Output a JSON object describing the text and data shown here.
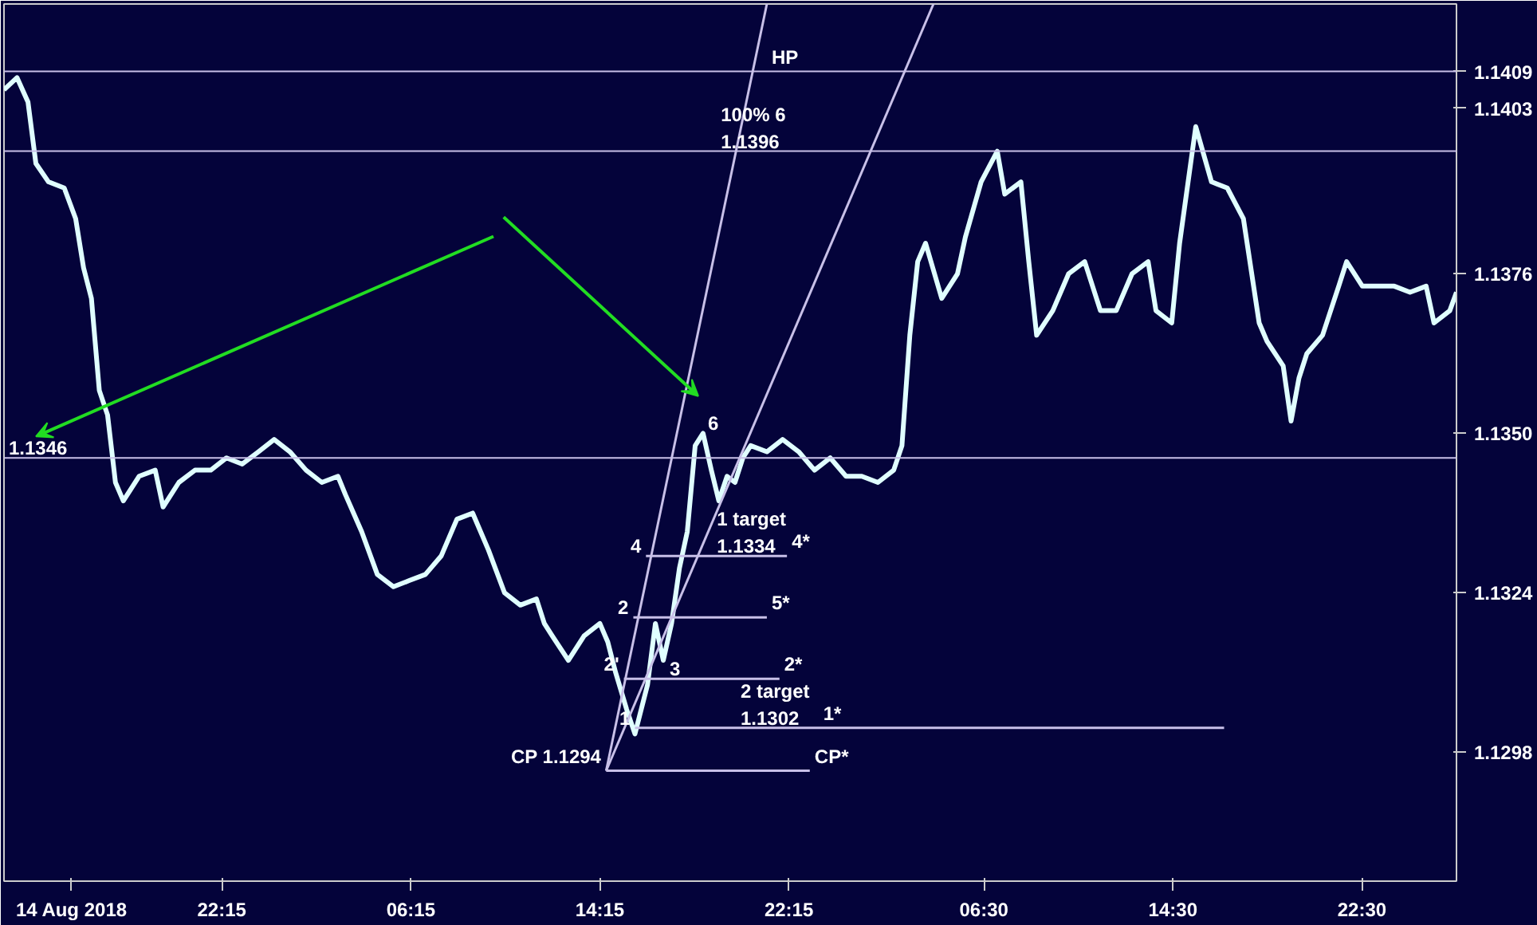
{
  "chart_data": {
    "type": "line",
    "xlim": [
      "2018-08-14T13:02",
      "2018-08-17T02:30"
    ],
    "ylim": [
      1.1277,
      1.142
    ],
    "xticks": [
      {
        "value": "2018-08-14T15:54",
        "label": "14 Aug 2018"
      },
      {
        "value": "2018-08-14T22:15",
        "label": "22:15"
      },
      {
        "value": "2018-08-15T06:15",
        "label": "06:15"
      },
      {
        "value": "2018-08-15T14:15",
        "label": "14:15"
      },
      {
        "value": "2018-08-15T22:15",
        "label": "22:15"
      },
      {
        "value": "2018-08-16T06:30",
        "label": "06:30"
      },
      {
        "value": "2018-08-16T14:30",
        "label": "14:30"
      },
      {
        "value": "2018-08-16T22:30",
        "label": "22:30"
      }
    ],
    "yticks": [
      {
        "value": 1.1298,
        "label": "1.1298"
      },
      {
        "value": 1.1324,
        "label": "1.1324"
      },
      {
        "value": 1.135,
        "label": "1.1350"
      },
      {
        "value": 1.1376,
        "label": "1.1376"
      },
      {
        "value": 1.1403,
        "label": "1.1403"
      },
      {
        "value": 1.1409,
        "label": "1.1409"
      }
    ],
    "grid": false,
    "series": [
      {
        "color": "#e0ffff",
        "x": [
          "2018-08-14T13:02",
          "2018-08-14T13:35",
          "2018-08-14T14:03",
          "2018-08-14T14:23",
          "2018-08-14T14:55",
          "2018-08-14T15:35",
          "2018-08-14T16:04",
          "2018-08-14T16:24",
          "2018-08-14T16:44",
          "2018-08-14T17:04",
          "2018-08-14T17:25",
          "2018-08-14T17:45",
          "2018-08-14T18:05",
          "2018-08-14T18:45",
          "2018-08-14T19:26",
          "2018-08-14T19:46",
          "2018-08-14T20:26",
          "2018-08-14T21:07",
          "2018-08-14T21:47",
          "2018-08-14T22:27",
          "2018-08-14T23:07",
          "2018-08-14T23:48",
          "2018-08-15T00:28",
          "2018-08-15T01:08",
          "2018-08-15T01:49",
          "2018-08-15T02:29",
          "2018-08-15T03:10",
          "2018-08-15T03:29",
          "2018-08-15T04:10",
          "2018-08-15T04:50",
          "2018-08-15T05:31",
          "2018-08-15T06:11",
          "2018-08-15T06:52",
          "2018-08-15T07:32",
          "2018-08-15T08:12",
          "2018-08-15T08:52",
          "2018-08-15T09:32",
          "2018-08-15T10:13",
          "2018-08-15T10:53",
          "2018-08-15T11:34",
          "2018-08-15T11:54",
          "2018-08-15T12:14",
          "2018-08-15T12:55",
          "2018-08-15T13:35",
          "2018-08-15T14:15",
          "2018-08-15T14:35",
          "2018-08-15T14:55",
          "2018-08-15T15:23",
          "2018-08-15T15:44",
          "2018-08-15T16:16",
          "2018-08-15T16:36",
          "2018-08-15T16:56",
          "2018-08-15T17:17",
          "2018-08-15T17:37",
          "2018-08-15T17:57",
          "2018-08-15T18:17",
          "2018-08-15T18:37",
          "2018-08-15T18:58",
          "2018-08-15T19:17",
          "2018-08-15T19:38",
          "2018-08-15T19:58",
          "2018-08-15T20:18",
          "2018-08-15T20:38",
          "2018-08-15T21:19",
          "2018-08-15T21:59",
          "2018-08-15T22:40",
          "2018-08-15T23:20",
          "2018-08-16T00:00",
          "2018-08-16T00:40",
          "2018-08-16T01:20",
          "2018-08-16T02:01",
          "2018-08-16T02:41",
          "2018-08-16T03:02",
          "2018-08-16T03:22",
          "2018-08-16T03:42",
          "2018-08-16T04:02",
          "2018-08-16T04:43",
          "2018-08-16T05:23",
          "2018-08-16T05:43",
          "2018-08-16T06:23",
          "2018-08-16T07:04",
          "2018-08-16T07:23",
          "2018-08-16T08:04",
          "2018-08-16T08:24",
          "2018-08-16T08:44",
          "2018-08-16T09:25",
          "2018-08-16T10:05",
          "2018-08-16T10:46",
          "2018-08-16T11:26",
          "2018-08-16T12:06",
          "2018-08-16T12:46",
          "2018-08-16T13:27",
          "2018-08-16T13:47",
          "2018-08-16T14:27",
          "2018-08-16T14:47",
          "2018-08-16T15:28",
          "2018-08-16T16:08",
          "2018-08-16T16:48",
          "2018-08-16T17:29",
          "2018-08-16T18:09",
          "2018-08-16T18:29",
          "2018-08-16T19:10",
          "2018-08-16T19:30",
          "2018-08-16T19:50",
          "2018-08-16T20:10",
          "2018-08-16T20:50",
          "2018-08-16T21:31",
          "2018-08-16T21:51",
          "2018-08-16T22:31",
          "2018-08-16T23:11",
          "2018-08-16T23:52",
          "2018-08-17T00:32",
          "2018-08-17T01:13",
          "2018-08-17T01:33",
          "2018-08-17T02:13",
          "2018-08-17T02:30"
        ],
        "values": [
          1.1406,
          1.1408,
          1.1404,
          1.1394,
          1.1391,
          1.139,
          1.1385,
          1.1377,
          1.1372,
          1.1357,
          1.1353,
          1.1342,
          1.1339,
          1.1343,
          1.1344,
          1.1338,
          1.1342,
          1.1344,
          1.1344,
          1.1346,
          1.1345,
          1.1347,
          1.1349,
          1.1347,
          1.1344,
          1.1342,
          1.1343,
          1.134,
          1.1334,
          1.1327,
          1.1325,
          1.1326,
          1.1327,
          1.133,
          1.1336,
          1.1337,
          1.1331,
          1.1324,
          1.1322,
          1.1323,
          1.1319,
          1.1317,
          1.1313,
          1.1317,
          1.1319,
          1.1316,
          1.1311,
          1.1305,
          1.1301,
          1.1309,
          1.1319,
          1.1313,
          1.1319,
          1.1328,
          1.1334,
          1.1348,
          1.135,
          1.1344,
          1.1339,
          1.1343,
          1.1342,
          1.1346,
          1.1348,
          1.1347,
          1.1349,
          1.1347,
          1.1344,
          1.1346,
          1.1343,
          1.1343,
          1.1342,
          1.1344,
          1.1348,
          1.1366,
          1.1378,
          1.1381,
          1.1372,
          1.1376,
          1.1382,
          1.1391,
          1.1396,
          1.1389,
          1.1391,
          1.1378,
          1.1366,
          1.137,
          1.1376,
          1.1378,
          1.137,
          1.137,
          1.1376,
          1.1378,
          1.137,
          1.1368,
          1.1381,
          1.14,
          1.1391,
          1.139,
          1.1385,
          1.1368,
          1.1365,
          1.1361,
          1.1352,
          1.1359,
          1.1363,
          1.1366,
          1.1374,
          1.1378,
          1.1374,
          1.1374,
          1.1374,
          1.1373,
          1.1374,
          1.1368,
          1.137,
          1.1373
        ]
      },
      {
        "type": "line",
        "color": "#c8c0e8",
        "x": [
          "2018-08-15T14:31",
          "2018-08-15T21:19"
        ],
        "values": [
          1.1295,
          1.142
        ]
      },
      {
        "type": "line",
        "color": "#c8c0e8",
        "x": [
          "2018-08-15T14:31",
          "2018-08-16T04:22"
        ],
        "values": [
          1.1295,
          1.142
        ]
      },
      {
        "type": "line",
        "color": "#c8c0e8",
        "x": [
          "2018-08-15T16:12",
          "2018-08-15T22:10"
        ],
        "values": [
          1.133,
          1.133
        ]
      },
      {
        "type": "line",
        "color": "#c8c0e8",
        "x": [
          "2018-08-15T15:40",
          "2018-08-15T21:19"
        ],
        "values": [
          1.132,
          1.132
        ]
      },
      {
        "type": "line",
        "color": "#c8c0e8",
        "x": [
          "2018-08-15T15:16",
          "2018-08-15T21:51"
        ],
        "values": [
          1.131,
          1.131
        ]
      },
      {
        "type": "line",
        "color": "#c8c0e8",
        "x": [
          "2018-08-15T15:44",
          "2018-08-16T16:40"
        ],
        "values": [
          1.1302,
          1.1302
        ]
      },
      {
        "type": "line",
        "color": "#c8c0e8",
        "x": [
          "2018-08-15T14:31",
          "2018-08-15T23:08"
        ],
        "values": [
          1.1295,
          1.1295
        ]
      }
    ],
    "ref_lines": [
      {
        "axis": "y",
        "value": 1.1409,
        "color": "#c8c0e8"
      },
      {
        "axis": "y",
        "value": 1.1396,
        "color": "#c8c0e8"
      },
      {
        "axis": "y",
        "value": 1.1346,
        "color": "#c8c0e8"
      }
    ],
    "annotations": [
      {
        "text": "HP",
        "x": "2018-08-15T21:19",
        "y": 1.1409
      },
      {
        "text": "100% 6",
        "x": "2018-08-15T19:10",
        "y": 1.1396
      },
      {
        "text": "1.1396",
        "x": "2018-08-15T19:10",
        "y": 1.1396
      },
      {
        "text": "1.1346",
        "x": "2018-08-14T13:02",
        "y": 1.1346
      },
      {
        "text": "6",
        "x": "2018-08-15T18:37",
        "y": 1.135
      },
      {
        "text": "1 target",
        "x": "2018-08-15T19:00",
        "y": 1.133
      },
      {
        "text": "1.1334",
        "x": "2018-08-15T19:00",
        "y": 1.133
      },
      {
        "text": "4",
        "x": "2018-08-15T16:12",
        "y": 1.133
      },
      {
        "text": "4*",
        "x": "2018-08-15T22:10",
        "y": 1.133
      },
      {
        "text": "2",
        "x": "2018-08-15T15:40",
        "y": 1.132
      },
      {
        "text": "5*",
        "x": "2018-08-15T21:19",
        "y": 1.132
      },
      {
        "text": "2'",
        "x": "2018-08-15T15:16",
        "y": 1.131
      },
      {
        "text": "2*",
        "x": "2018-08-15T21:51",
        "y": 1.131
      },
      {
        "text": "3",
        "x": "2018-08-15T17:00",
        "y": 1.131
      },
      {
        "text": "2 target",
        "x": "2018-08-15T20:00",
        "y": 1.1302
      },
      {
        "text": "1.1302",
        "x": "2018-08-15T20:00",
        "y": 1.1302
      },
      {
        "text": "1*",
        "x": "2018-08-15T23:30",
        "y": 1.1302
      },
      {
        "text": "1",
        "x": "2018-08-15T15:44",
        "y": 1.1302
      },
      {
        "text": "CP 1.1294",
        "x": "2018-08-15T14:31",
        "y": 1.1295
      },
      {
        "text": "CP*",
        "x": "2018-08-15T23:08",
        "y": 1.1295
      }
    ]
  }
}
